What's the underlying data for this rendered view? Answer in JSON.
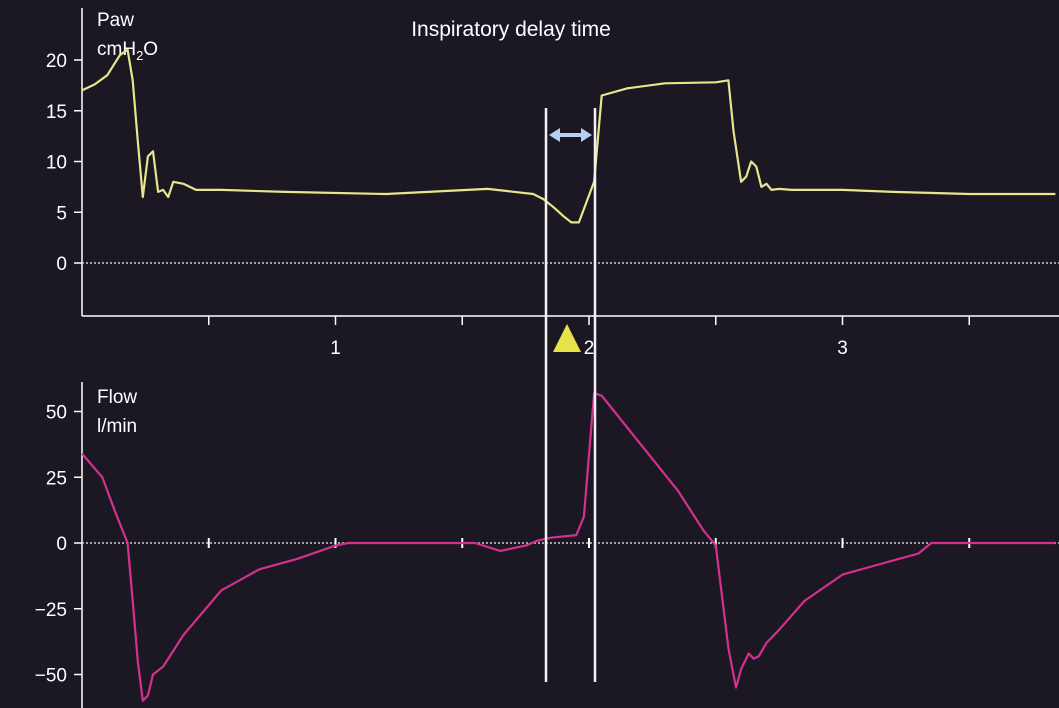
{
  "chart_data": [
    {
      "type": "line",
      "name": "pressure",
      "ylabel_line1": "Paw",
      "ylabel_line2_base": "cmH",
      "ylabel_line2_sub": "2",
      "ylabel_line2_end": "O",
      "ylim": [
        -5,
        24
      ],
      "yticks": [
        0,
        5,
        10,
        15,
        20
      ],
      "xlim": [
        0,
        3.84
      ],
      "xticks": [
        1,
        2,
        3
      ],
      "xtick_labels": [
        "1",
        "2",
        "3"
      ],
      "color": "#e8e68c",
      "zero_line": true,
      "annotation": "Inspiratory delay time",
      "series": [
        {
          "x": [
            0,
            0.05,
            0.1,
            0.15,
            0.18,
            0.2,
            0.22,
            0.24,
            0.26,
            0.28,
            0.3,
            0.32,
            0.34,
            0.36,
            0.4,
            0.45,
            0.55,
            0.8,
            1.2,
            1.6,
            1.78,
            1.82,
            1.86,
            1.9,
            1.93,
            1.96,
            2.02,
            2.05,
            2.15,
            2.3,
            2.5,
            2.55,
            2.57,
            2.6,
            2.62,
            2.64,
            2.66,
            2.68,
            2.7,
            2.72,
            2.75,
            2.8,
            3.0,
            3.2,
            3.5,
            3.84
          ],
          "y": [
            17,
            17.6,
            18.5,
            20.5,
            21,
            18,
            12,
            6.5,
            10.5,
            11,
            7,
            7.2,
            6.5,
            8,
            7.8,
            7.2,
            7.2,
            7,
            6.8,
            7.3,
            6.8,
            6.3,
            5.5,
            4.6,
            4,
            4,
            8,
            16.5,
            17.2,
            17.7,
            17.8,
            18,
            13,
            8,
            8.5,
            10,
            9.5,
            7.5,
            7.8,
            7.2,
            7.3,
            7.2,
            7.2,
            7,
            6.8,
            6.8
          ]
        }
      ]
    },
    {
      "type": "line",
      "name": "flow",
      "ylabel_line1": "Flow",
      "ylabel_line2": "l/min",
      "ylim": [
        -62,
        62
      ],
      "yticks": [
        50,
        25,
        0,
        -25,
        -50
      ],
      "ytick_labels": [
        "50",
        "25",
        "0",
        "−25",
        "−50"
      ],
      "xlim": [
        0,
        3.84
      ],
      "color": "#d4308f",
      "zero_line": true,
      "series": [
        {
          "x": [
            0,
            0.08,
            0.13,
            0.18,
            0.2,
            0.22,
            0.24,
            0.26,
            0.28,
            0.32,
            0.4,
            0.55,
            0.7,
            0.85,
            1.0,
            1.05,
            1.2,
            1.55,
            1.65,
            1.75,
            1.8,
            1.85,
            1.95,
            1.98,
            2.02,
            2.05,
            2.1,
            2.2,
            2.35,
            2.45,
            2.5,
            2.55,
            2.58,
            2.6,
            2.63,
            2.65,
            2.67,
            2.7,
            2.75,
            2.85,
            3.0,
            3.15,
            3.3,
            3.35,
            3.5,
            3.84
          ],
          "y": [
            34,
            25,
            12,
            0,
            -22,
            -45,
            -60,
            -58,
            -50,
            -47,
            -35,
            -18,
            -10,
            -6,
            -1,
            0,
            0,
            0,
            -3,
            -1,
            1,
            2,
            3,
            10,
            57,
            56,
            50,
            38,
            20,
            5,
            -1,
            -40,
            -55,
            -48,
            -42,
            -44,
            -43,
            -38,
            -33,
            -22,
            -12,
            -8,
            -4,
            0,
            0,
            0
          ]
        }
      ]
    }
  ]
}
